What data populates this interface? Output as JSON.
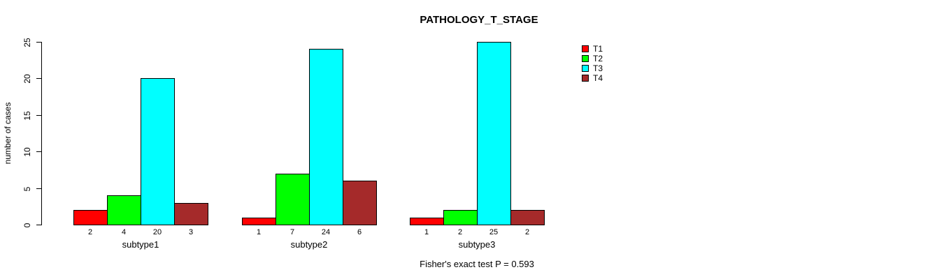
{
  "chart_data": {
    "type": "bar",
    "title": "PATHOLOGY_T_STAGE",
    "xlabel": "",
    "ylabel": "number of cases",
    "ylim": [
      0,
      25
    ],
    "yticks": [
      0,
      5,
      10,
      15,
      20,
      25
    ],
    "categories": [
      "subtype1",
      "subtype2",
      "subtype3"
    ],
    "series": [
      {
        "name": "T1",
        "color": "#ff0000",
        "values": [
          2,
          1,
          1
        ]
      },
      {
        "name": "T2",
        "color": "#00ff00",
        "values": [
          4,
          7,
          2
        ]
      },
      {
        "name": "T3",
        "color": "#00ffff",
        "values": [
          20,
          24,
          25
        ]
      },
      {
        "name": "T4",
        "color": "#a52a2a",
        "values": [
          3,
          6,
          2
        ]
      }
    ],
    "bar_value_labels_shown": true,
    "legend": {
      "position": "right",
      "entries": [
        "T1",
        "T2",
        "T3",
        "T4"
      ]
    },
    "annotation": "Fisher's exact test P = 0.593",
    "grid": false,
    "background": "#ffffff",
    "bar_border_color": "#000000"
  }
}
